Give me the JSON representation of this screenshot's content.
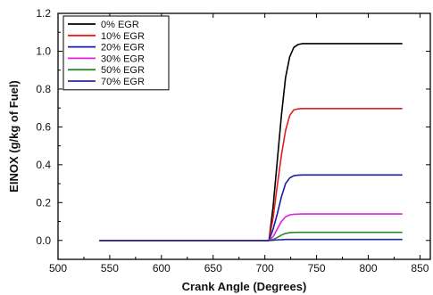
{
  "chart_data": {
    "type": "line",
    "title": "",
    "xlabel": "Crank Angle (Degrees)",
    "ylabel": "EINOX (g/kg of Fuel)",
    "xlim": [
      500,
      860
    ],
    "ylim": [
      -0.1,
      1.2
    ],
    "xticks": [
      500,
      550,
      600,
      650,
      700,
      750,
      800,
      850
    ],
    "xtick_labels": [
      "500",
      "550",
      "600",
      "650",
      "700",
      "750",
      "800",
      "850"
    ],
    "yticks": [
      0.0,
      0.2,
      0.4,
      0.6,
      0.8,
      1.0,
      1.2
    ],
    "ytick_labels": [
      "0.0",
      "0.2",
      "0.4",
      "0.6",
      "0.8",
      "1.0",
      "1.2"
    ],
    "grid": false,
    "legend_position": "top-left",
    "x": [
      540,
      600,
      650,
      700,
      704,
      708,
      712,
      716,
      720,
      724,
      728,
      732,
      736,
      740,
      745,
      750,
      760,
      780,
      800,
      820,
      833
    ],
    "series": [
      {
        "name": "0% EGR",
        "color": "#000000",
        "values": [
          0,
          0,
          0,
          0,
          0,
          0.18,
          0.42,
          0.66,
          0.86,
          0.97,
          1.02,
          1.035,
          1.04,
          1.04,
          1.04,
          1.04,
          1.04,
          1.04,
          1.04,
          1.04,
          1.04
        ]
      },
      {
        "name": "10% EGR",
        "color": "#e02020",
        "values": [
          0,
          0,
          0,
          0,
          0,
          0.12,
          0.29,
          0.45,
          0.58,
          0.66,
          0.69,
          0.695,
          0.697,
          0.697,
          0.697,
          0.697,
          0.697,
          0.697,
          0.697,
          0.697,
          0.697
        ]
      },
      {
        "name": "20% EGR",
        "color": "#1a1aa8",
        "values": [
          0,
          0,
          0,
          0,
          0,
          0.06,
          0.14,
          0.23,
          0.3,
          0.33,
          0.342,
          0.345,
          0.346,
          0.346,
          0.346,
          0.346,
          0.346,
          0.346,
          0.346,
          0.346,
          0.346
        ]
      },
      {
        "name": "30% EGR",
        "color": "#e020e0",
        "values": [
          0,
          0,
          0,
          0,
          0,
          0.02,
          0.06,
          0.1,
          0.125,
          0.135,
          0.138,
          0.139,
          0.14,
          0.14,
          0.14,
          0.14,
          0.14,
          0.14,
          0.14,
          0.14,
          0.14
        ]
      },
      {
        "name": "50% EGR",
        "color": "#2a8a2a",
        "values": [
          0,
          0,
          0,
          0,
          0,
          0.005,
          0.015,
          0.028,
          0.037,
          0.041,
          0.042,
          0.043,
          0.043,
          0.043,
          0.043,
          0.043,
          0.043,
          0.043,
          0.043,
          0.043,
          0.043
        ]
      },
      {
        "name": "70% EGR",
        "color": "#2a2a9a",
        "values": [
          0,
          0,
          0,
          0,
          0,
          0.001,
          0.003,
          0.004,
          0.005,
          0.005,
          0.005,
          0.005,
          0.005,
          0.005,
          0.005,
          0.005,
          0.005,
          0.005,
          0.005,
          0.005,
          0.005
        ]
      }
    ]
  }
}
